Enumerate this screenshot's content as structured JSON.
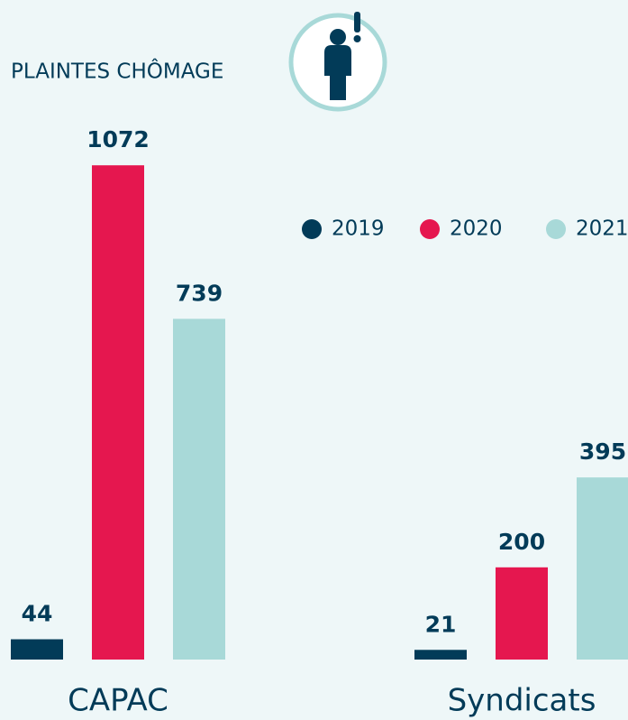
{
  "chart_data": {
    "type": "bar",
    "title": "PLAINTES CHÔMAGE",
    "categories": [
      "CAPAC",
      "Syndicats"
    ],
    "series": [
      {
        "name": "2019",
        "color": "#023b58",
        "values": [
          44,
          21
        ]
      },
      {
        "name": "2020",
        "color": "#e5174f",
        "values": [
          1072,
          200
        ]
      },
      {
        "name": "2021",
        "color": "#a8d9d8",
        "values": [
          739,
          395
        ]
      }
    ],
    "legend": "top-right"
  }
}
